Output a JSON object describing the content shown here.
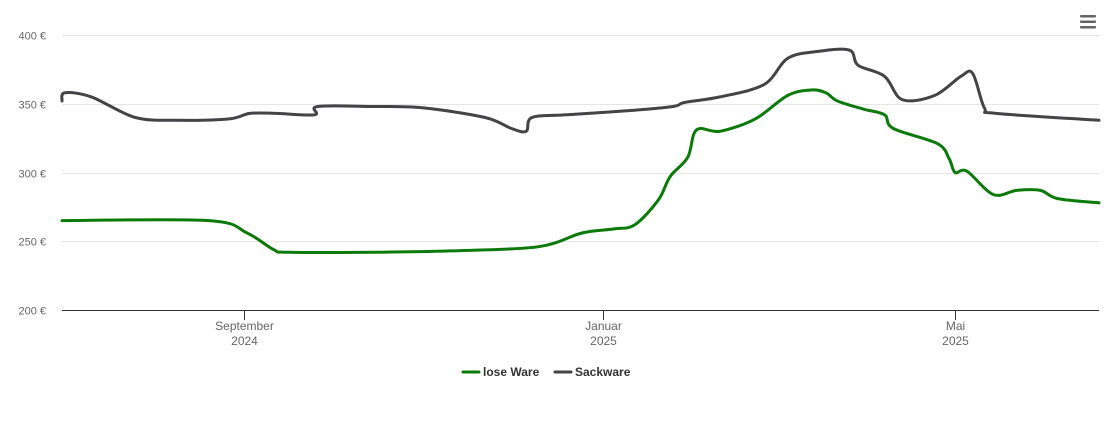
{
  "chart_data": {
    "type": "line",
    "x_range": [
      "2024-07-01",
      "2025-06-19"
    ],
    "ylim": [
      200,
      400
    ],
    "y_ticks": [
      {
        "value": 200,
        "label": "200 €"
      },
      {
        "value": 250,
        "label": "250 €"
      },
      {
        "value": 300,
        "label": "300 €"
      },
      {
        "value": 350,
        "label": "350 €"
      },
      {
        "value": 400,
        "label": "400 €"
      }
    ],
    "x_ticks": [
      {
        "date": "2024-09-01",
        "label": "September",
        "sublabel": "2024"
      },
      {
        "date": "2025-01-01",
        "label": "Januar",
        "sublabel": "2025"
      },
      {
        "date": "2025-05-01",
        "label": "Mai",
        "sublabel": "2025"
      }
    ],
    "grid": true,
    "legend_position": "bottom-center",
    "series": [
      {
        "name": "lose Ware",
        "color": "#0b7a0b",
        "points": [
          [
            "2024-07-01",
            265
          ],
          [
            "2024-08-20",
            265
          ],
          [
            "2024-09-02",
            256
          ],
          [
            "2024-09-11",
            244
          ],
          [
            "2024-09-16",
            242
          ],
          [
            "2024-10-15",
            242
          ],
          [
            "2024-11-10",
            243
          ],
          [
            "2024-12-10",
            246
          ],
          [
            "2024-12-25",
            256
          ],
          [
            "2025-01-05",
            259
          ],
          [
            "2025-01-12",
            262
          ],
          [
            "2025-01-20",
            280
          ],
          [
            "2025-01-24",
            297
          ],
          [
            "2025-01-30",
            311
          ],
          [
            "2025-02-02",
            331
          ],
          [
            "2025-02-10",
            330
          ],
          [
            "2025-02-22",
            339
          ],
          [
            "2025-03-05",
            356
          ],
          [
            "2025-03-13",
            360
          ],
          [
            "2025-03-18",
            358
          ],
          [
            "2025-03-22",
            352
          ],
          [
            "2025-03-31",
            346
          ],
          [
            "2025-04-07",
            342
          ],
          [
            "2025-04-10",
            332
          ],
          [
            "2025-04-25",
            321
          ],
          [
            "2025-04-29",
            310
          ],
          [
            "2025-05-01",
            300
          ],
          [
            "2025-05-05",
            301
          ],
          [
            "2025-05-14",
            284
          ],
          [
            "2025-05-22",
            287
          ],
          [
            "2025-05-30",
            287
          ],
          [
            "2025-06-05",
            281
          ],
          [
            "2025-06-19",
            278
          ]
        ]
      },
      {
        "name": "Sackware",
        "color": "#434348",
        "points": [
          [
            "2024-07-01",
            352
          ],
          [
            "2024-07-02",
            358
          ],
          [
            "2024-07-11",
            355
          ],
          [
            "2024-07-26",
            340
          ],
          [
            "2024-08-10",
            338
          ],
          [
            "2024-08-27",
            339
          ],
          [
            "2024-09-03",
            343
          ],
          [
            "2024-09-12",
            343
          ],
          [
            "2024-09-25",
            342
          ],
          [
            "2024-09-26",
            348
          ],
          [
            "2024-10-15",
            348
          ],
          [
            "2024-11-01",
            347
          ],
          [
            "2024-11-22",
            340
          ],
          [
            "2024-12-01",
            332
          ],
          [
            "2024-12-06",
            330
          ],
          [
            "2024-12-08",
            340
          ],
          [
            "2024-12-20",
            342
          ],
          [
            "2025-01-10",
            345
          ],
          [
            "2025-01-25",
            348
          ],
          [
            "2025-01-29",
            351
          ],
          [
            "2025-02-10",
            355
          ],
          [
            "2025-02-25",
            364
          ],
          [
            "2025-03-05",
            383
          ],
          [
            "2025-03-15",
            388
          ],
          [
            "2025-03-26",
            389
          ],
          [
            "2025-03-29",
            378
          ],
          [
            "2025-04-07",
            370
          ],
          [
            "2025-04-13",
            353
          ],
          [
            "2025-04-24",
            356
          ],
          [
            "2025-05-03",
            370
          ],
          [
            "2025-05-07",
            372
          ],
          [
            "2025-05-11",
            347
          ],
          [
            "2025-05-15",
            343
          ],
          [
            "2025-06-19",
            338
          ]
        ]
      }
    ]
  },
  "menu": {
    "icon": "hamburger-menu-icon"
  }
}
